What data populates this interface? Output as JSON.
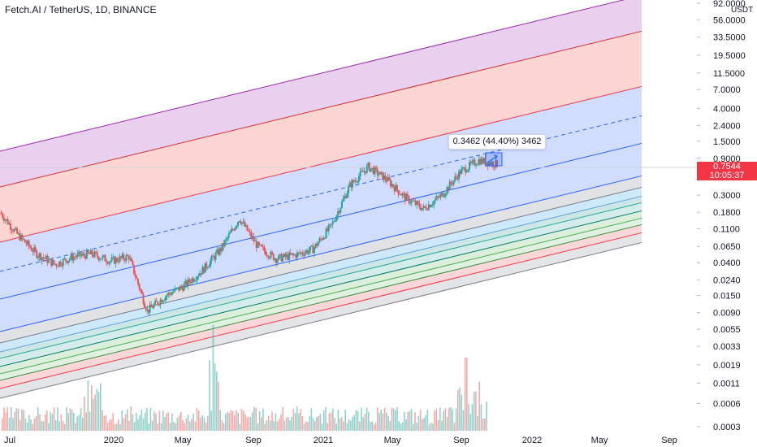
{
  "header": {
    "title": "Fetch.AI / TetherUS, 1D, BINANCE"
  },
  "price": {
    "last": "0.7544",
    "countdown": "10:05:37",
    "axis_unit": "USDT",
    "tag_color": "#f23645"
  },
  "measure": {
    "label": "0.3462 (44.40%) 3462"
  },
  "chart_data": {
    "type": "line",
    "title": "Fetch.AI / TetherUS, 1D, BINANCE",
    "y_scale": "log",
    "ylim": [
      0.0003,
      92
    ],
    "y_ticks": [
      "92.0000",
      "56.0000",
      "33.5000",
      "19.5000",
      "11.5000",
      "7.0000",
      "4.0000",
      "2.4000",
      "1.5000",
      "0.9000",
      "0.5400",
      "0.3000",
      "0.1800",
      "0.1100",
      "0.0650",
      "0.0400",
      "0.0240",
      "0.0150",
      "0.0090",
      "0.0055",
      "0.0033",
      "0.0019",
      "0.0011",
      "0.0006",
      "0.0003"
    ],
    "x_ticks": [
      "Jul",
      "2020",
      "May",
      "Sep",
      "2021",
      "May",
      "Sep",
      "2022",
      "May",
      "Sep"
    ],
    "series": [
      {
        "values": [
          [
            "Jul 2019",
            0.18
          ],
          [
            "Aug 2019",
            0.09
          ],
          [
            "Sep 2019",
            0.052
          ],
          [
            "Oct 2019",
            0.038
          ],
          [
            "Nov 2019",
            0.048
          ],
          [
            "Dec 2019",
            0.052
          ],
          [
            "Jan 2020",
            0.042
          ],
          [
            "Feb 2020",
            0.048
          ],
          [
            "Mar 2020",
            0.0095
          ],
          [
            "Apr 2020",
            0.015
          ],
          [
            "May 2020",
            0.02
          ],
          [
            "Jun 2020",
            0.032
          ],
          [
            "Jul 2020",
            0.06
          ],
          [
            "Aug 2020",
            0.15
          ],
          [
            "Sep 2020",
            0.065
          ],
          [
            "Oct 2020",
            0.045
          ],
          [
            "Nov 2020",
            0.05
          ],
          [
            "Dec 2020",
            0.06
          ],
          [
            "Jan 2021",
            0.12
          ],
          [
            "Feb 2021",
            0.4
          ],
          [
            "Mar 2021",
            0.7
          ],
          [
            "Apr 2021",
            0.48
          ],
          [
            "May 2021",
            0.28
          ],
          [
            "Jun 2021",
            0.2
          ],
          [
            "Jul 2021",
            0.3
          ],
          [
            "Aug 2021",
            0.6
          ],
          [
            "Sep 2021",
            0.85
          ],
          [
            "Oct 2021",
            0.7544
          ]
        ]
      }
    ],
    "channel_colors": [
      "#9c27b0",
      "#f44336",
      "#2962ff",
      "#787b86",
      "#2196f3",
      "#00897b",
      "#4caf50",
      "#f23645"
    ],
    "grid": false,
    "legend": "none"
  }
}
